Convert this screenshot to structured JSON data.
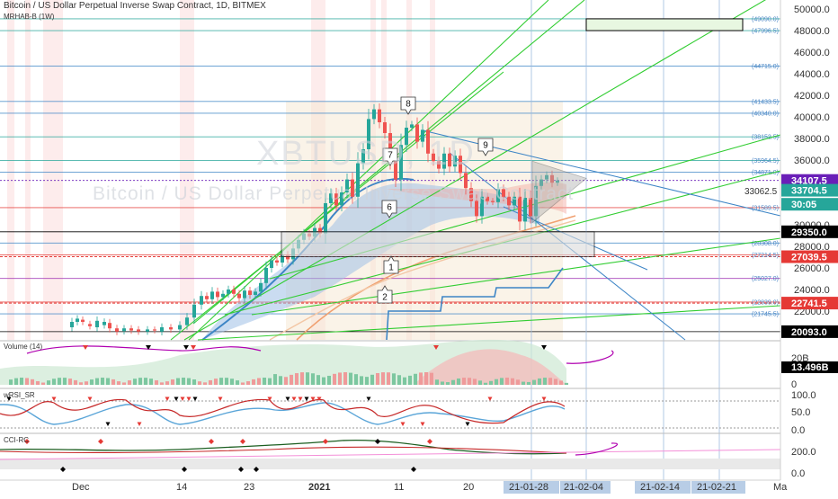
{
  "header": {
    "title": "Bitcoin / US Dollar Perpetual Inverse Swap Contract, 1D, BITMEX",
    "indicator": "MRHAB-B (1W)"
  },
  "watermark": {
    "symbol": "XBTUSD, 1D",
    "description": "Bitcoin / US Dollar Perpetual Inverse Swap Contract"
  },
  "price_axis": {
    "ticks": [
      "50000.0",
      "48000.0",
      "46000.0",
      "44000.0",
      "42000.0",
      "40000.0",
      "38000.0",
      "36000.0",
      "34000.0",
      "32000.0",
      "30000.0",
      "28000.0",
      "26000.0",
      "24000.0",
      "22000.0",
      "20000.0"
    ],
    "tick_values": [
      50000,
      48000,
      46000,
      44000,
      42000,
      40000,
      38000,
      36000,
      34000,
      32000,
      30000,
      28000,
      26000,
      24000,
      22000,
      20000
    ],
    "badges": [
      {
        "text": "34107.5",
        "value": 34107.5,
        "color": "#6a1fb8"
      },
      {
        "text": "33704.5",
        "value": 33200,
        "color": "#26a69a"
      },
      {
        "text": "30:05",
        "value": 31900,
        "color": "#26a69a"
      },
      {
        "text": "29350.0",
        "value": 29350,
        "color": "#000000"
      },
      {
        "text": "27039.5",
        "value": 27039.5,
        "color": "#e53935"
      },
      {
        "text": "22741.5",
        "value": 22741.5,
        "color": "#e53935"
      },
      {
        "text": "20093.0",
        "value": 20093,
        "color": "#000000"
      }
    ],
    "cursor_label": "33062.5"
  },
  "level_labels": [
    {
      "text": "(49090.0)",
      "value": 49090
    },
    {
      "text": "(47996.5)",
      "value": 47996.5
    },
    {
      "text": "(44715.0)",
      "value": 44715
    },
    {
      "text": "(41433.5)",
      "value": 41433.5
    },
    {
      "text": "(40340.0)",
      "value": 40340
    },
    {
      "text": "(38152.5)",
      "value": 38152.5
    },
    {
      "text": "(35964.5)",
      "value": 35964.5
    },
    {
      "text": "(34871.0)",
      "value": 34871
    },
    {
      "text": "(31589.5)",
      "value": 31589.5
    },
    {
      "text": "(28308.0)",
      "value": 28308
    },
    {
      "text": "(27214.5)",
      "value": 27214.5
    },
    {
      "text": "(25027.0)",
      "value": 25027
    },
    {
      "text": "(22839.0)",
      "value": 22839
    },
    {
      "text": "(21745.5)",
      "value": 21745.5
    }
  ],
  "callouts": [
    "1",
    "2",
    "6",
    "7",
    "8",
    "9"
  ],
  "panels": {
    "volume": {
      "label": "Volume (14)",
      "ticks": [
        "20B",
        "0"
      ],
      "badge": "13.496B"
    },
    "wrsi": {
      "label": "wRSI_SR",
      "ticks": [
        "100.0",
        "50.0",
        "0.0"
      ]
    },
    "cci": {
      "label": "CCI-RC",
      "ticks": [
        "200.0",
        "0.0"
      ]
    }
  },
  "time_axis": {
    "labels": [
      "Dec",
      "14",
      "23",
      "2021",
      "11",
      "20",
      "Ma"
    ],
    "highlights": [
      "21-01-28",
      "21-02-04",
      "21-02-14",
      "21-02-21"
    ]
  },
  "colors": {
    "bull": "#26a69a",
    "bear": "#ef5350",
    "green_line": "#32cd32",
    "blue_line": "#3d85c6",
    "purple_badge": "#6a1fb8"
  }
}
